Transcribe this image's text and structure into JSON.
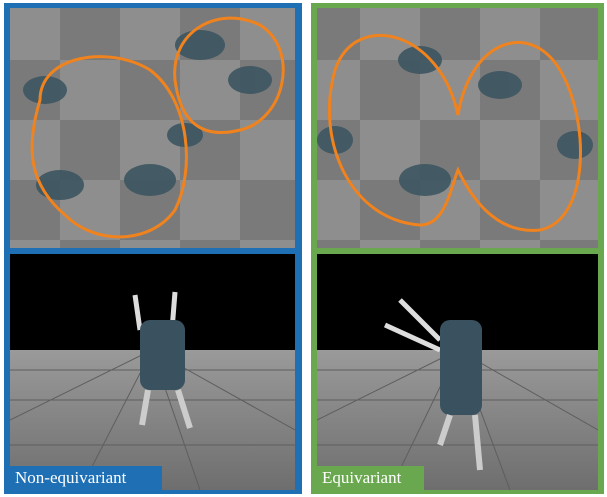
{
  "panels": [
    {
      "label": "Non-equivariant"
    },
    {
      "label": "Equivariant"
    }
  ]
}
